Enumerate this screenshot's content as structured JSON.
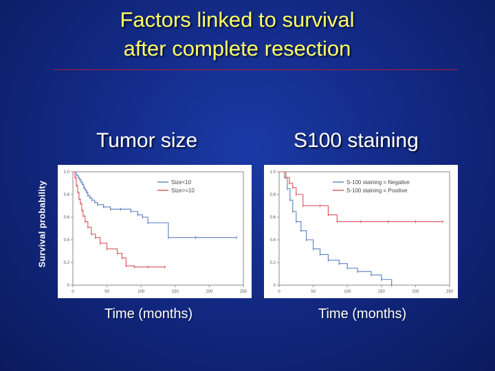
{
  "slide": {
    "title_line1": "Factors linked to survival",
    "title_line2": "after complete resection",
    "y_label": "Survival probability"
  },
  "colors": {
    "title": "#ffff66",
    "rule": "#b01a3a",
    "blue_series": "#5a7fbf",
    "red_series": "#d9535b"
  },
  "chart_data": [
    {
      "type": "line",
      "title": "Tumor size",
      "xlabel": "Time (months)",
      "ylabel": "Survival probability",
      "xlim": [
        0,
        250
      ],
      "ylim": [
        0,
        1
      ],
      "x_ticks": [
        "0",
        "50",
        "100",
        "150",
        "200",
        "250"
      ],
      "y_ticks": [
        "0",
        "0.2",
        "0.4",
        "0.6",
        "0.8",
        "1.0"
      ],
      "legend_position": "top-right",
      "series": [
        {
          "name": "Size<10",
          "color": "#5a7fbf",
          "x": [
            0,
            5,
            8,
            10,
            12,
            14,
            16,
            18,
            20,
            22,
            25,
            28,
            32,
            36,
            45,
            55,
            70,
            85,
            95,
            102,
            110,
            140,
            180,
            240
          ],
          "y": [
            1.0,
            0.97,
            0.95,
            0.93,
            0.91,
            0.89,
            0.86,
            0.84,
            0.82,
            0.79,
            0.77,
            0.75,
            0.73,
            0.71,
            0.69,
            0.67,
            0.67,
            0.65,
            0.62,
            0.6,
            0.55,
            0.42,
            0.42,
            0.42
          ]
        },
        {
          "name": "Size>=10",
          "color": "#d9535b",
          "x": [
            0,
            3,
            5,
            7,
            9,
            11,
            13,
            15,
            18,
            22,
            27,
            33,
            40,
            50,
            65,
            72,
            78,
            90,
            110,
            135
          ],
          "y": [
            1.0,
            0.95,
            0.88,
            0.82,
            0.76,
            0.72,
            0.66,
            0.61,
            0.56,
            0.51,
            0.45,
            0.42,
            0.37,
            0.32,
            0.28,
            0.24,
            0.17,
            0.16,
            0.16,
            0.16
          ]
        }
      ]
    },
    {
      "type": "line",
      "title": "S100 staining",
      "xlabel": "Time (months)",
      "ylabel": "",
      "xlim": [
        0,
        250
      ],
      "ylim": [
        0,
        1
      ],
      "x_ticks": [
        "0",
        "50",
        "100",
        "150",
        "200",
        "250"
      ],
      "y_ticks": [
        "0",
        "0.2",
        "0.4",
        "0.6",
        "0.8",
        "1.0"
      ],
      "legend_position": "top-right",
      "series": [
        {
          "name": "S-100 staining = Negative",
          "color": "#5a7fbf",
          "x": [
            0,
            8,
            12,
            16,
            20,
            25,
            32,
            40,
            50,
            60,
            72,
            88,
            100,
            115,
            135,
            150,
            165
          ],
          "y": [
            1.0,
            0.95,
            0.85,
            0.75,
            0.65,
            0.56,
            0.48,
            0.4,
            0.32,
            0.27,
            0.22,
            0.19,
            0.15,
            0.12,
            0.09,
            0.05,
            0.0
          ]
        },
        {
          "name": "S-100 staining = Positive",
          "color": "#d9535b",
          "x": [
            0,
            10,
            15,
            20,
            25,
            35,
            60,
            72,
            85,
            120,
            160,
            200,
            240
          ],
          "y": [
            1.0,
            0.95,
            0.9,
            0.86,
            0.8,
            0.7,
            0.7,
            0.62,
            0.56,
            0.56,
            0.56,
            0.56,
            0.56
          ]
        }
      ]
    }
  ]
}
